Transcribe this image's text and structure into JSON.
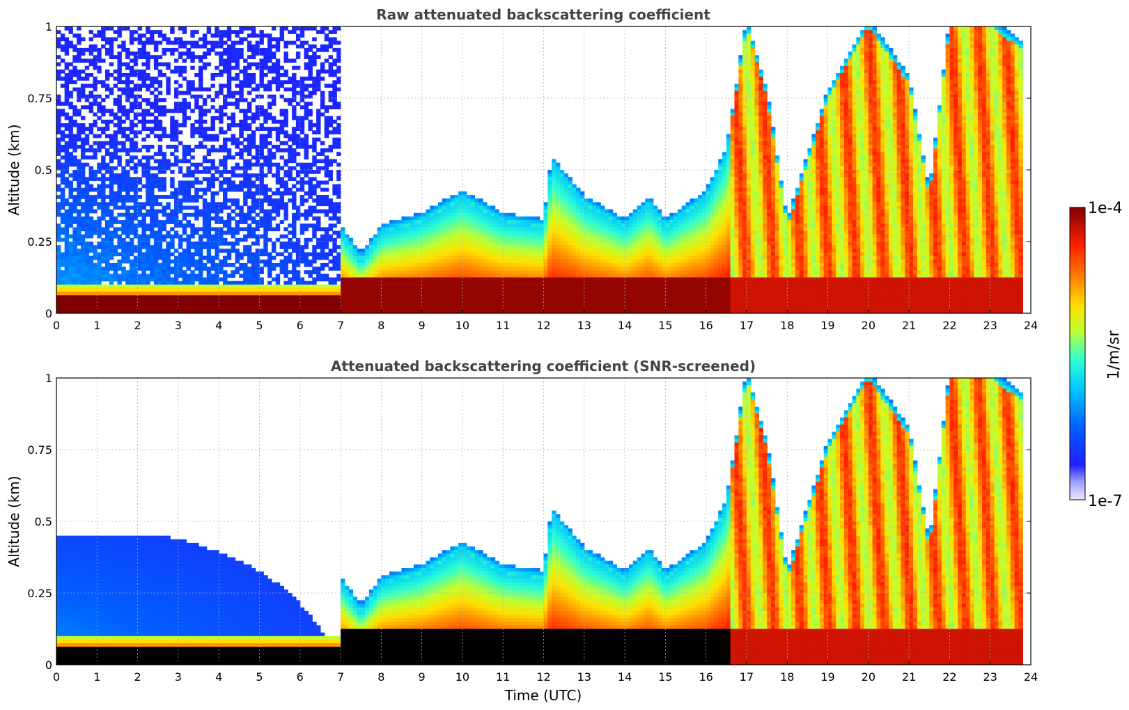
{
  "chart_data": [
    {
      "type": "heatmap",
      "title": "Raw attenuated backscattering coefficient",
      "xlabel": "",
      "ylabel": "Altitude (km)",
      "xlim": [
        0,
        24
      ],
      "ylim": [
        0,
        1
      ],
      "x_ticks": [
        "0",
        "1",
        "2",
        "3",
        "4",
        "5",
        "6",
        "7",
        "8",
        "9",
        "10",
        "11",
        "12",
        "13",
        "14",
        "15",
        "16",
        "17",
        "18",
        "19",
        "20",
        "21",
        "22",
        "23",
        "24"
      ],
      "y_ticks": [
        "0",
        "0.25",
        "0.5",
        "0.75",
        "1"
      ],
      "grid": true,
      "colormap": "jet",
      "screened": false,
      "time_features_utc": [
        7.0,
        12.2,
        16.8,
        17.2,
        19.5,
        20.0,
        21.6,
        22.4,
        23.4
      ],
      "boundary_layer_top_km": [
        [
          0,
          0.1
        ],
        [
          1,
          0.1
        ],
        [
          2,
          0.1
        ],
        [
          3,
          0.1
        ],
        [
          4,
          0.1
        ],
        [
          5,
          0.1
        ],
        [
          6,
          0.1
        ],
        [
          7,
          0.28
        ],
        [
          7.5,
          0.18
        ],
        [
          8,
          0.28
        ],
        [
          9,
          0.32
        ],
        [
          10,
          0.4
        ],
        [
          11,
          0.32
        ],
        [
          12,
          0.3
        ],
        [
          12.2,
          0.52
        ],
        [
          13,
          0.38
        ],
        [
          14,
          0.3
        ],
        [
          14.6,
          0.38
        ],
        [
          15,
          0.3
        ],
        [
          16,
          0.4
        ],
        [
          16.5,
          0.55
        ],
        [
          17,
          1.0
        ],
        [
          17.5,
          0.75
        ],
        [
          18,
          0.3
        ],
        [
          19,
          0.75
        ],
        [
          20,
          1.0
        ],
        [
          21,
          0.8
        ],
        [
          21.5,
          0.4
        ],
        [
          22,
          1.0
        ],
        [
          23,
          1.0
        ],
        [
          24,
          0.9
        ]
      ]
    },
    {
      "type": "heatmap",
      "title": "Attenuated backscattering coefficient (SNR-screened)",
      "xlabel": "Time (UTC)",
      "ylabel": "Altitude (km)",
      "xlim": [
        0,
        24
      ],
      "ylim": [
        0,
        1
      ],
      "x_ticks": [
        "0",
        "1",
        "2",
        "3",
        "4",
        "5",
        "6",
        "7",
        "8",
        "9",
        "10",
        "11",
        "12",
        "13",
        "14",
        "15",
        "16",
        "17",
        "18",
        "19",
        "20",
        "21",
        "22",
        "23",
        "24"
      ],
      "y_ticks": [
        "0",
        "0.25",
        "0.5",
        "0.75",
        "1"
      ],
      "grid": true,
      "colormap": "jet",
      "screened": true,
      "masked_color": "#000000"
    }
  ],
  "colorbar": {
    "label": "1/m/sr",
    "max_label": "1e-4",
    "min_label": "1e-7",
    "scale": "log",
    "range": [
      1e-07,
      0.0001
    ]
  },
  "colors": {
    "jet_dark_red": "#800000",
    "jet_red": "#ff2000",
    "jet_orange": "#ff9000",
    "jet_yellow": "#e8ff10",
    "jet_cyan": "#20e8e0",
    "jet_blue": "#0030ff",
    "low_lavender": "#e8e8ff",
    "masked_black": "#000000"
  }
}
